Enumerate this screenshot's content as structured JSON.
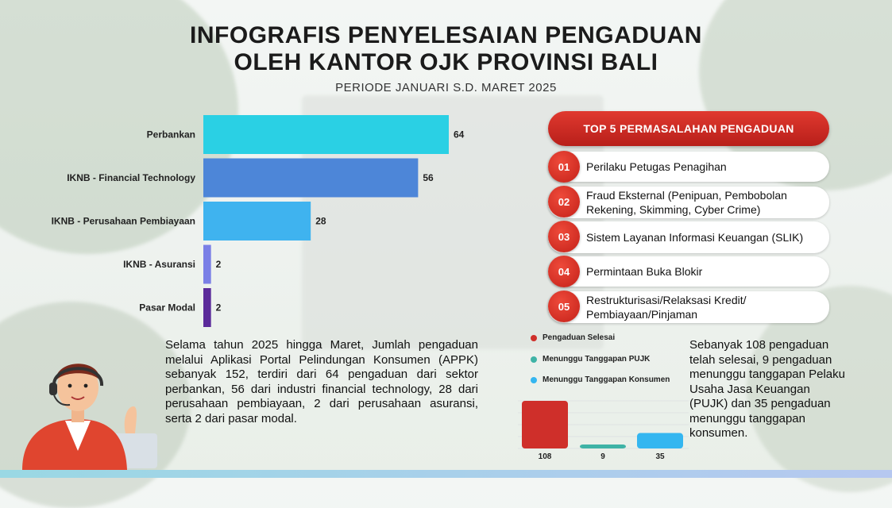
{
  "title_line1": "INFOGRAFIS PENYELESAIAN PENGADUAN",
  "title_line2": "OLEH KANTOR OJK PROVINSI BALI",
  "period": "PERIODE JANUARI S.D. MARET 2025",
  "chart_data": [
    {
      "type": "bar",
      "orientation": "horizontal",
      "categories": [
        "Perbankan",
        "IKNB - Financial Technology",
        "IKNB - Perusahaan Pembiayaan",
        "IKNB - Asuransi",
        "Pasar Modal"
      ],
      "values": [
        64,
        56,
        28,
        2,
        2
      ],
      "colors": [
        "#2ad0e4",
        "#4d86d8",
        "#3fb3ef",
        "#7a7fe6",
        "#5b2a9a"
      ],
      "data_labels": [
        "64",
        "56",
        "28",
        "2",
        "2"
      ],
      "xlim": [
        0,
        64
      ]
    },
    {
      "type": "bar",
      "orientation": "vertical",
      "categories": [
        "Pengaduan Selesai",
        "Menunggu Tanggapan PUJK",
        "Menunggu Tanggapan Konsumen"
      ],
      "values": [
        108,
        9,
        35
      ],
      "colors": [
        "#cf2f2a",
        "#3fb3a6",
        "#34b6f0"
      ],
      "data_labels": [
        "108",
        "9",
        "35"
      ],
      "legend": "top"
    }
  ],
  "top5": {
    "header": "TOP 5 PERMASALAHAN PENGADUAN",
    "items": [
      {
        "num": "01",
        "text": "Perilaku Petugas Penagihan"
      },
      {
        "num": "02",
        "text": "Fraud Eksternal (Penipuan, Pembobolan Rekening, Skimming, Cyber Crime)"
      },
      {
        "num": "03",
        "text": "Sistem Layanan Informasi Keuangan (SLIK)"
      },
      {
        "num": "04",
        "text": "Permintaan Buka Blokir"
      },
      {
        "num": "05",
        "text": "Restrukturisasi/Relaksasi Kredit/ Pembiayaan/Pinjaman"
      }
    ]
  },
  "paragraph_left": "Selama tahun 2025 hingga Maret, Jumlah pengaduan melalui Aplikasi Portal Pelindungan Konsumen (APPK) sebanyak 152, terdiri dari 64 pengaduan dari sektor perbankan, 56 dari industri financial technology, 28 dari perusahaan pembiayaan, 2 dari perusahaan asuransi, serta 2 dari pasar modal.",
  "paragraph_right": "Sebanyak 108 pengaduan telah selesai, 9 pengaduan menunggu tanggapan Pelaku Usaha Jasa Keuangan (PUJK) dan 35 pengaduan menunggu tanggapan konsumen."
}
